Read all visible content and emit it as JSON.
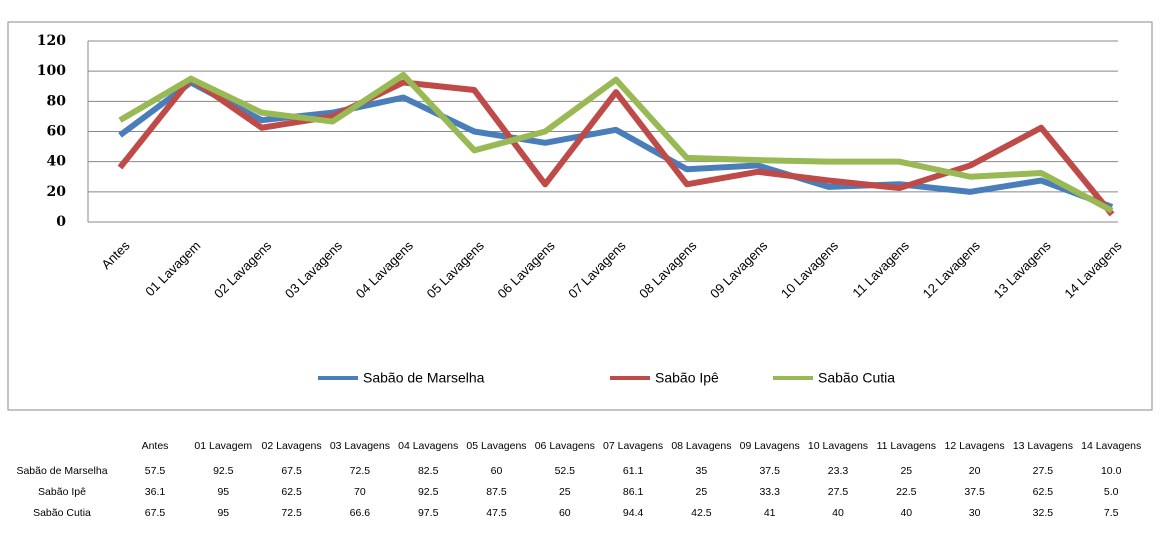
{
  "chart_data": {
    "type": "line",
    "categories": [
      "Antes",
      "01 Lavagem",
      "02 Lavagens",
      "03 Lavagens",
      "04 Lavagens",
      "05 Lavagens",
      "06 Lavagens",
      "07 Lavagens",
      "08 Lavagens",
      "09 Lavagens",
      "10 Lavagens",
      "11 Lavagens",
      "12 Lavagens",
      "13 Lavagens",
      "14 Lavagens"
    ],
    "series": [
      {
        "name": "Sabão de Marselha",
        "color": "#4a7ebb",
        "values": [
          57.5,
          92.5,
          67.5,
          72.5,
          82.5,
          60,
          52.5,
          61.1,
          35,
          37.5,
          23.3,
          25,
          20,
          27.5,
          10.0
        ],
        "value_labels": [
          "57.5",
          "92.5",
          "67.5",
          "72.5",
          "82.5",
          "60",
          "52.5",
          "61.1",
          "35",
          "37.5",
          "23.3",
          "25",
          "20",
          "27.5",
          "10.0"
        ]
      },
      {
        "name": "Sabão Ipê",
        "color": "#be4b48",
        "values": [
          36.1,
          95,
          62.5,
          70,
          92.5,
          87.5,
          25,
          86.1,
          25,
          33.3,
          27.5,
          22.5,
          37.5,
          62.5,
          5.0
        ],
        "value_labels": [
          "36.1",
          "95",
          "62.5",
          "70",
          "92.5",
          "87.5",
          "25",
          "86.1",
          "25",
          "33.3",
          "27.5",
          "22.5",
          "37.5",
          "62.5",
          "5.0"
        ]
      },
      {
        "name": "Sabão Cutia",
        "color": "#98b954",
        "values": [
          67.5,
          95,
          72.5,
          66.6,
          97.5,
          47.5,
          60,
          94.4,
          42.5,
          41,
          40,
          40,
          30,
          32.5,
          7.5
        ],
        "value_labels": [
          "67.5",
          "95",
          "72.5",
          "66.6",
          "97.5",
          "47.5",
          "60",
          "94.4",
          "42.5",
          "41",
          "40",
          "40",
          "30",
          "32.5",
          "7.5"
        ]
      }
    ],
    "ylim": [
      0,
      120
    ],
    "yticks": [
      0,
      20,
      40,
      60,
      80,
      100,
      120
    ],
    "grid": true,
    "legend": "bottom"
  }
}
